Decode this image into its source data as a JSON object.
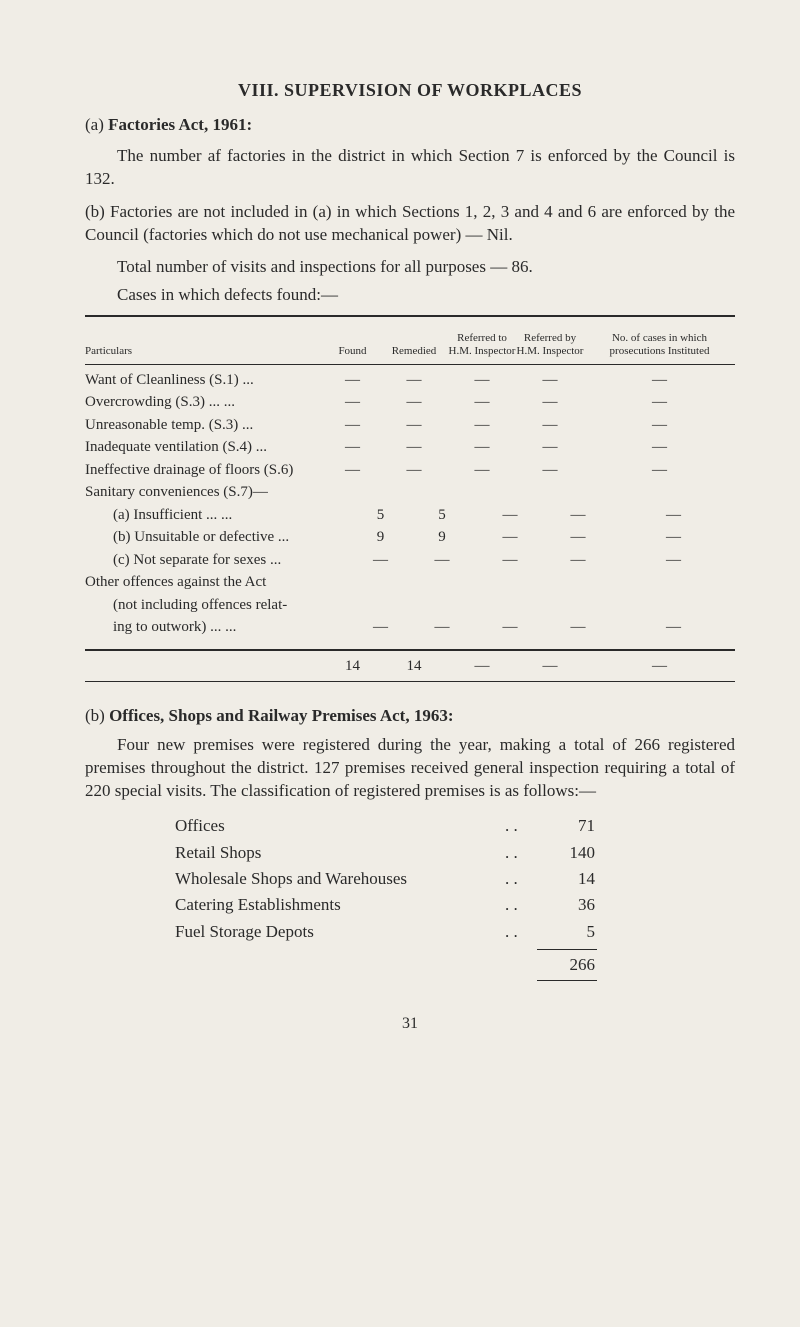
{
  "heading": "VIII.  SUPERVISION OF WORKPLACES",
  "section_a": {
    "label": "(a)",
    "title": "Factories Act, 1961:",
    "para1": "The number af factories in the district in which Section 7 is enforced by the Council is 132.",
    "para2": "(b)  Factories are not included in (a) in which Sections 1, 2, 3 and 4 and 6 are enforced by the Council (factories which do not use mechanical power) — Nil.",
    "para3": "Total number of visits and inspections for all purposes — 86.",
    "para4": "Cases in which defects found:—"
  },
  "table": {
    "headers": {
      "particulars": "Particulars",
      "found": "Found",
      "remedied": "Remedied",
      "ref_hm": "Referred to H.M. Inspector",
      "ref_hm2": "Referred by H.M. Inspector",
      "inst": "No. of cases in which prosecutions Instituted"
    },
    "rows": [
      {
        "label": "Want of Cleanliness (S.1)",
        "dots": "...",
        "found": "—",
        "rem": "—",
        "r1": "—",
        "r2": "—",
        "inst": "—"
      },
      {
        "label": "Overcrowding (S.3)",
        "dots": "...   ...",
        "found": "—",
        "rem": "—",
        "r1": "—",
        "r2": "—",
        "inst": "—"
      },
      {
        "label": "Unreasonable temp. (S.3)",
        "dots": "...",
        "found": "—",
        "rem": "—",
        "r1": "—",
        "r2": "—",
        "inst": "—"
      },
      {
        "label": "Inadequate ventilation (S.4)",
        "dots": "...",
        "found": "—",
        "rem": "—",
        "r1": "—",
        "r2": "—",
        "inst": "—"
      },
      {
        "label": "Ineffective drainage of floors (S.6)",
        "dots": "",
        "found": "—",
        "rem": "—",
        "r1": "—",
        "r2": "—",
        "inst": "—"
      },
      {
        "label": "Sanitary conveniences (S.7)—",
        "dots": "",
        "found": "",
        "rem": "",
        "r1": "",
        "r2": "",
        "inst": ""
      },
      {
        "label": "(a) Insufficient",
        "dots": "...   ...",
        "found": "5",
        "rem": "5",
        "r1": "—",
        "r2": "—",
        "inst": "—",
        "indent": true
      },
      {
        "label": "(b) Unsuitable or defective ...",
        "dots": "",
        "found": "9",
        "rem": "9",
        "r1": "—",
        "r2": "—",
        "inst": "—",
        "indent": true
      },
      {
        "label": "(c) Not separate for sexes ...",
        "dots": "",
        "found": "—",
        "rem": "—",
        "r1": "—",
        "r2": "—",
        "inst": "—",
        "indent": true
      }
    ],
    "multi": {
      "l1": "Other offences against the Act",
      "l2": "(not including offences relat-",
      "l3": "ing to outwork)        ...   ...",
      "found": "—",
      "rem": "—",
      "r1": "—",
      "r2": "—",
      "inst": "—"
    },
    "totals": {
      "found": "14",
      "rem": "14",
      "r1": "—",
      "r2": "—",
      "inst": "—"
    }
  },
  "section_b": {
    "label": "(b)",
    "title": "Offices, Shops and Railway Premises Act, 1963:",
    "para": "Four new premises were registered during the year, making a total of 266 registered premises throughout the district. 127 premises received general inspection requiring a total of 220 special visits. The classification of registered premises is as follows:—",
    "items": [
      {
        "label": "Offices",
        "val": "71"
      },
      {
        "label": "Retail Shops",
        "val": "140"
      },
      {
        "label": "Wholesale Shops and Warehouses",
        "val": "14"
      },
      {
        "label": "Catering Establishments",
        "val": "36"
      },
      {
        "label": "Fuel Storage Depots",
        "val": "5"
      }
    ],
    "total": "266"
  },
  "pagenum": "31"
}
